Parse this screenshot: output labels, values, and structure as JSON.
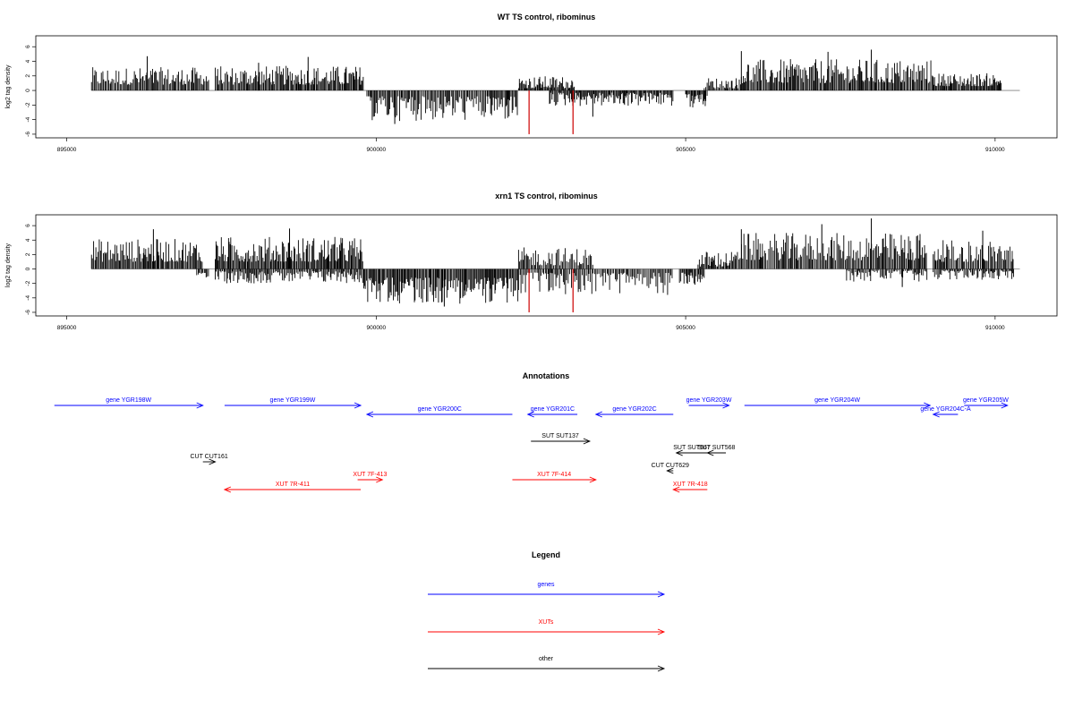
{
  "colors": {
    "gene": "#0000ff",
    "xut": "#ff0000",
    "other": "#000000",
    "bar": "#000000",
    "bar_highlight": "#cc0000",
    "baseline": "#808080"
  },
  "chart_data": [
    {
      "type": "bar",
      "title": "WT TS control, ribominus",
      "xlabel": "",
      "ylabel": "log2 tag density",
      "xlim": [
        894500,
        911000
      ],
      "ylim": [
        -6.5,
        7.5
      ],
      "xticks": [
        895000,
        900000,
        905000,
        910000
      ],
      "yticks": [
        -6,
        -4,
        -2,
        0,
        2,
        4,
        6
      ],
      "data_extent": [
        895400,
        910400
      ],
      "segments": [
        {
          "start": 895400,
          "end": 897300,
          "sign": 1,
          "min": 0.8,
          "max": 3.2
        },
        {
          "start": 897400,
          "end": 899800,
          "sign": 1,
          "min": 0.8,
          "max": 3.4
        },
        {
          "start": 899850,
          "end": 902300,
          "sign": -1,
          "min": 0.8,
          "max": 4.2
        },
        {
          "start": 902300,
          "end": 903200,
          "sign": 1,
          "min": 0.3,
          "max": 2.0
        },
        {
          "start": 902800,
          "end": 904800,
          "sign": -1,
          "min": 0.3,
          "max": 2.2
        },
        {
          "start": 905000,
          "end": 905350,
          "sign": -1,
          "min": 0.5,
          "max": 2.5
        },
        {
          "start": 905300,
          "end": 905900,
          "sign": 1,
          "min": 0.3,
          "max": 1.8
        },
        {
          "start": 905900,
          "end": 909000,
          "sign": 1,
          "min": 1.0,
          "max": 4.3
        },
        {
          "start": 909000,
          "end": 910100,
          "sign": 1,
          "min": 0.6,
          "max": 2.4
        }
      ],
      "peaks": [
        {
          "x": 896300,
          "y": 4.7
        },
        {
          "x": 898900,
          "y": 4.6
        },
        {
          "x": 900300,
          "y": -4.6
        },
        {
          "x": 905900,
          "y": 5.4
        },
        {
          "x": 907300,
          "y": 5.3
        },
        {
          "x": 908000,
          "y": 5.6
        },
        {
          "x": 903500,
          "y": -3.6
        },
        {
          "x": 898100,
          "y": 3.8
        }
      ],
      "highlight_bars": [
        {
          "x": 902470,
          "y": -6.0
        },
        {
          "x": 903180,
          "y": -6.0
        }
      ]
    },
    {
      "type": "bar",
      "title": "xrn1 TS control, ribominus",
      "xlabel": "",
      "ylabel": "log2 tag density",
      "xlim": [
        894500,
        911000
      ],
      "ylim": [
        -6.5,
        7.5
      ],
      "xticks": [
        895000,
        900000,
        905000,
        910000
      ],
      "yticks": [
        -6,
        -4,
        -2,
        0,
        2,
        4,
        6
      ],
      "data_extent": [
        895400,
        910400
      ],
      "segments": [
        {
          "start": 895400,
          "end": 897200,
          "sign": 1,
          "min": 1.0,
          "max": 4.2
        },
        {
          "start": 897100,
          "end": 897300,
          "sign": -1,
          "min": 0.5,
          "max": 2.0
        },
        {
          "start": 897400,
          "end": 899800,
          "sign": 1,
          "min": 1.0,
          "max": 4.5
        },
        {
          "start": 897400,
          "end": 899800,
          "sign": -1,
          "min": 0.3,
          "max": 2.0
        },
        {
          "start": 899800,
          "end": 902300,
          "sign": -1,
          "min": 1.2,
          "max": 4.8
        },
        {
          "start": 902300,
          "end": 903500,
          "sign": 1,
          "min": 0.5,
          "max": 3.0
        },
        {
          "start": 902300,
          "end": 904800,
          "sign": -1,
          "min": 0.5,
          "max": 3.6
        },
        {
          "start": 904900,
          "end": 905300,
          "sign": -1,
          "min": 0.5,
          "max": 2.2
        },
        {
          "start": 905200,
          "end": 905800,
          "sign": 1,
          "min": 0.3,
          "max": 2.5
        },
        {
          "start": 905800,
          "end": 908900,
          "sign": 1,
          "min": 1.2,
          "max": 5.0
        },
        {
          "start": 907600,
          "end": 908900,
          "sign": -1,
          "min": 0.2,
          "max": 1.8
        },
        {
          "start": 909000,
          "end": 910300,
          "sign": 1,
          "min": 1.0,
          "max": 4.0
        },
        {
          "start": 909000,
          "end": 910300,
          "sign": -1,
          "min": 0.2,
          "max": 1.5
        }
      ],
      "peaks": [
        {
          "x": 896400,
          "y": 5.5
        },
        {
          "x": 898600,
          "y": 5.6
        },
        {
          "x": 901100,
          "y": -5.2
        },
        {
          "x": 905900,
          "y": 5.5
        },
        {
          "x": 908000,
          "y": 7.0
        },
        {
          "x": 907200,
          "y": 6.2
        },
        {
          "x": 908500,
          "y": -2.5
        },
        {
          "x": 909800,
          "y": 5.3
        }
      ],
      "highlight_bars": [
        {
          "x": 902470,
          "y": -6.0
        },
        {
          "x": 903180,
          "y": -6.0
        }
      ]
    }
  ],
  "annotations": {
    "title": "Annotations",
    "items": [
      {
        "label": "gene YGR198W",
        "start": 894800,
        "end": 897200,
        "strand": "+",
        "kind": "gene",
        "row": 0
      },
      {
        "label": "gene YGR199W",
        "start": 897550,
        "end": 899750,
        "strand": "+",
        "kind": "gene",
        "row": 0
      },
      {
        "label": "gene YGR200C",
        "start": 899850,
        "end": 902200,
        "strand": "-",
        "kind": "gene",
        "row": 1
      },
      {
        "label": "gene YGR201C",
        "start": 902450,
        "end": 903250,
        "strand": "-",
        "kind": "gene",
        "row": 1
      },
      {
        "label": "gene YGR202C",
        "start": 903550,
        "end": 904800,
        "strand": "-",
        "kind": "gene",
        "row": 1
      },
      {
        "label": "gene YGR203W",
        "start": 905050,
        "end": 905700,
        "strand": "+",
        "kind": "gene",
        "row": 0
      },
      {
        "label": "gene YGR204W",
        "start": 905950,
        "end": 908950,
        "strand": "+",
        "kind": "gene",
        "row": 0
      },
      {
        "label": "gene YGR204C-A",
        "start": 909000,
        "end": 909400,
        "strand": "-",
        "kind": "gene",
        "row": 1
      },
      {
        "label": "gene YGR205W",
        "start": 909500,
        "end": 910200,
        "strand": "+",
        "kind": "gene",
        "row": 0
      },
      {
        "label": "SUT SUT137",
        "start": 902500,
        "end": 903450,
        "strand": "+",
        "kind": "other",
        "row": 2
      },
      {
        "label": "SUT SUT567",
        "start": 904850,
        "end": 905350,
        "strand": "-",
        "kind": "other",
        "row": 3
      },
      {
        "label": "SUT SUT568",
        "start": 905350,
        "end": 905650,
        "strand": "-",
        "kind": "other",
        "row": 3
      },
      {
        "label": "CUT CUT161",
        "start": 897200,
        "end": 897400,
        "strand": "+",
        "kind": "other",
        "row": 4
      },
      {
        "label": "CUT CUT629",
        "start": 904700,
        "end": 904800,
        "strand": "-",
        "kind": "other",
        "row": 5
      },
      {
        "label": "XUT 7F-413",
        "start": 899700,
        "end": 900100,
        "strand": "+",
        "kind": "xut",
        "row": 6
      },
      {
        "label": "XUT 7R-411",
        "start": 897550,
        "end": 899750,
        "strand": "-",
        "kind": "xut",
        "row": 7
      },
      {
        "label": "XUT 7F-414",
        "start": 902200,
        "end": 903550,
        "strand": "+",
        "kind": "xut",
        "row": 6
      },
      {
        "label": "XUT 7R-418",
        "start": 904800,
        "end": 905350,
        "strand": "-",
        "kind": "xut",
        "row": 7
      }
    ]
  },
  "legend": {
    "title": "Legend",
    "items": [
      {
        "label": "genes",
        "kind": "gene"
      },
      {
        "label": "XUTs",
        "kind": "xut"
      },
      {
        "label": "other",
        "kind": "other"
      }
    ]
  }
}
